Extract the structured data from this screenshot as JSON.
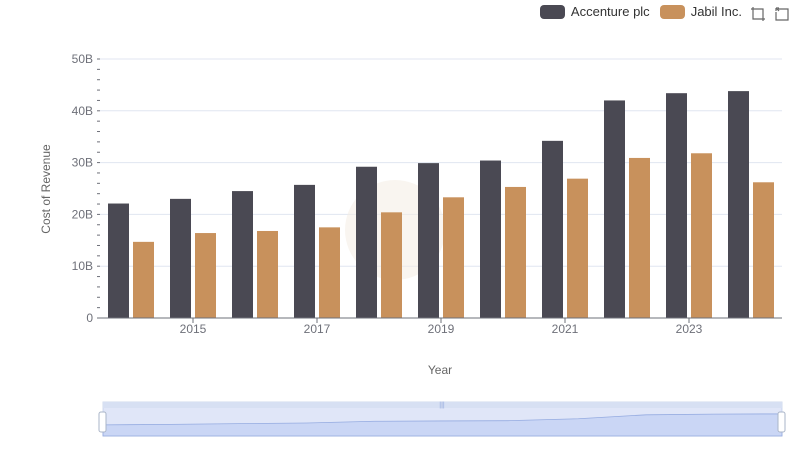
{
  "legend": [
    {
      "name": "Accenture plc",
      "color": "#4a4953"
    },
    {
      "name": "Jabil Inc.",
      "color": "#c8915c"
    }
  ],
  "toolbox": {
    "zoom_icon": "zoom-icon",
    "restore_icon": "restore-icon"
  },
  "chart_data": {
    "type": "bar",
    "x": [
      2014,
      2015,
      2016,
      2017,
      2018,
      2019,
      2020,
      2021,
      2022,
      2023,
      2024
    ],
    "x_tick_labels": [
      "2015",
      "2017",
      "2019",
      "2021",
      "2023"
    ],
    "y_tick_labels": [
      "0",
      "10B",
      "20B",
      "30B",
      "40B",
      "50B"
    ],
    "ylim": [
      0,
      50000000000
    ],
    "xlabel": "Year",
    "ylabel": "Cost of Revenue",
    "grid": true,
    "legend_position": "top-right",
    "series": [
      {
        "name": "Accenture plc",
        "color": "#4a4953",
        "values": [
          22100000000,
          23000000000,
          24500000000,
          25700000000,
          29200000000,
          29900000000,
          30400000000,
          34200000000,
          42000000000,
          43400000000,
          43800000000
        ]
      },
      {
        "name": "Jabil Inc.",
        "color": "#c8915c",
        "values": [
          14700000000,
          16400000000,
          16800000000,
          17500000000,
          20400000000,
          23300000000,
          25300000000,
          26900000000,
          30900000000,
          31800000000,
          26200000000
        ]
      }
    ]
  }
}
